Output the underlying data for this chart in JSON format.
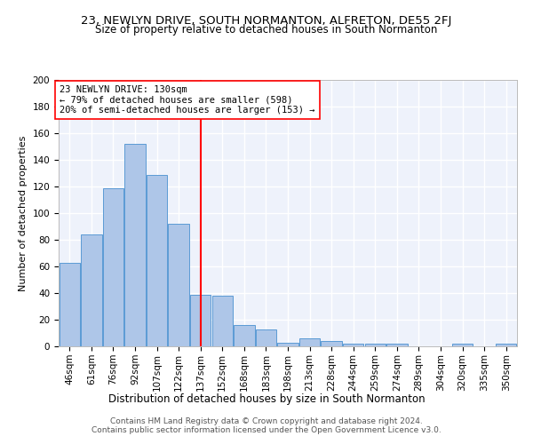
{
  "title": "23, NEWLYN DRIVE, SOUTH NORMANTON, ALFRETON, DE55 2FJ",
  "subtitle": "Size of property relative to detached houses in South Normanton",
  "xlabel": "Distribution of detached houses by size in South Normanton",
  "ylabel": "Number of detached properties",
  "footnote1": "Contains HM Land Registry data © Crown copyright and database right 2024.",
  "footnote2": "Contains public sector information licensed under the Open Government Licence v3.0.",
  "bar_labels": [
    "46sqm",
    "61sqm",
    "76sqm",
    "92sqm",
    "107sqm",
    "122sqm",
    "137sqm",
    "152sqm",
    "168sqm",
    "183sqm",
    "198sqm",
    "213sqm",
    "228sqm",
    "244sqm",
    "259sqm",
    "274sqm",
    "289sqm",
    "304sqm",
    "320sqm",
    "335sqm",
    "350sqm"
  ],
  "bar_values": [
    63,
    84,
    119,
    152,
    129,
    92,
    39,
    38,
    16,
    13,
    3,
    6,
    4,
    2,
    2,
    2,
    0,
    0,
    2,
    0,
    2
  ],
  "bar_color": "#aec6e8",
  "bar_edge_color": "#5b9bd5",
  "vline_x": 6.0,
  "vline_color": "red",
  "annotation_title": "23 NEWLYN DRIVE: 130sqm",
  "annotation_line1": "← 79% of detached houses are smaller (598)",
  "annotation_line2": "20% of semi-detached houses are larger (153) →",
  "annotation_box_color": "white",
  "annotation_box_edge_color": "red",
  "ylim": [
    0,
    200
  ],
  "yticks": [
    0,
    20,
    40,
    60,
    80,
    100,
    120,
    140,
    160,
    180,
    200
  ],
  "background_color": "#eef2fb",
  "grid_color": "white",
  "title_fontsize": 9.5,
  "subtitle_fontsize": 8.5,
  "ylabel_fontsize": 8,
  "xlabel_fontsize": 8.5,
  "tick_fontsize": 7.5,
  "annotation_fontsize": 7.5,
  "footnote_fontsize": 6.5
}
